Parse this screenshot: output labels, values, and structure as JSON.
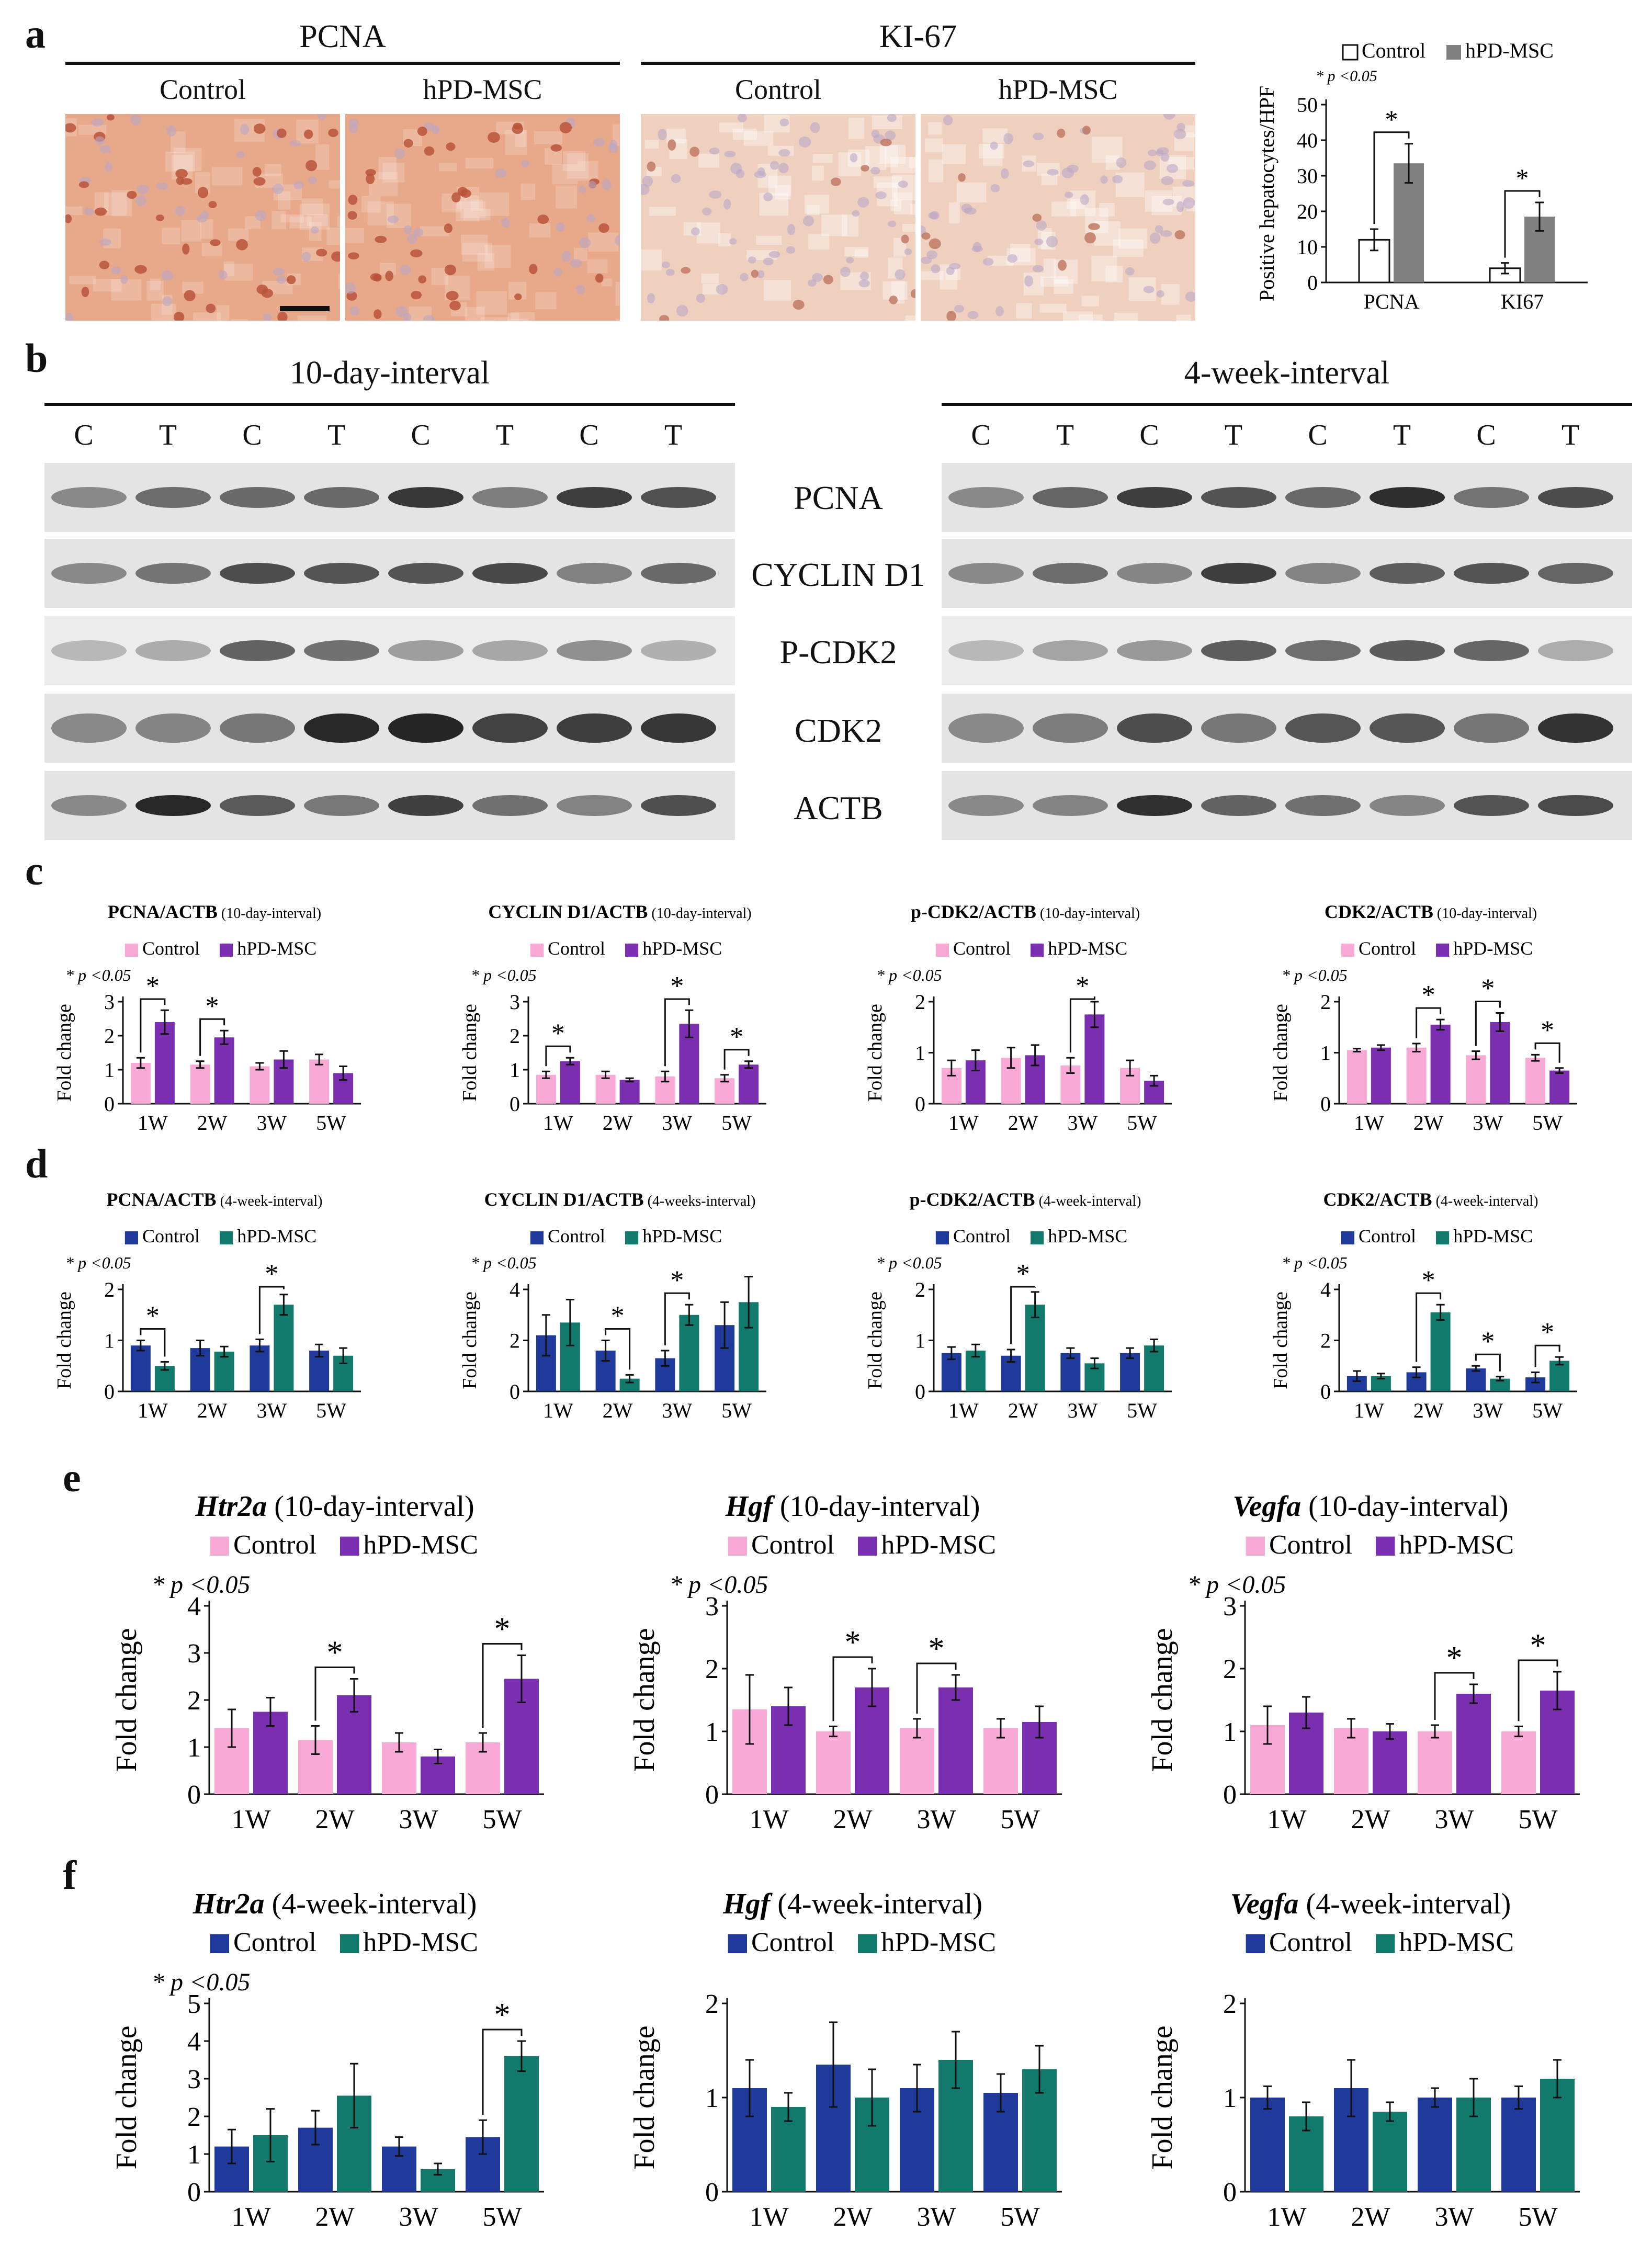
{
  "panels": {
    "a": "a",
    "b": "b",
    "c": "c",
    "d": "d",
    "e": "e",
    "f": "f"
  },
  "a": {
    "pcna_header": "PCNA",
    "ki67_header": "KI-67",
    "sub_control": "Control",
    "sub_treated": "hPD-MSC",
    "tissue_colors": {
      "pcna_base": "#e8a98a",
      "pcna_nucleus": "#b8543a",
      "ki67_base": "#efd0bf",
      "ki67_nucleus": "#c07a64"
    }
  },
  "b": {
    "interval_10d": "10-day-interval",
    "interval_4w": "4-week-interval",
    "lanes": [
      "C",
      "T",
      "C",
      "T",
      "C",
      "T",
      "C",
      "T"
    ],
    "proteins": [
      "PCNA",
      "CYCLIN D1",
      "P-CDK2",
      "CDK2",
      "ACTB"
    ]
  },
  "colors": {
    "control_pink": "#f8a9d6",
    "msc_purple": "#7a2fb0",
    "control_navy": "#1f3a9a",
    "msc_teal": "#127a6c",
    "empty_bar": "#ffffff",
    "grey_bar": "#808080"
  },
  "chart_data": [
    {
      "id": "a-quant",
      "type": "bar",
      "title": "",
      "ylabel": "Positive hepatocytes/HPF",
      "note": "* p <0.05",
      "categories": [
        "PCNA",
        "KI67"
      ],
      "ylim": [
        0,
        50
      ],
      "yticks": [
        0,
        10,
        20,
        30,
        40,
        50
      ],
      "series": [
        {
          "name": "Control",
          "values": [
            12,
            4
          ],
          "err": [
            3,
            1.5
          ]
        },
        {
          "name": "hPD-MSC",
          "values": [
            33.5,
            18.5
          ],
          "err": [
            5.5,
            4
          ]
        }
      ],
      "sig": [
        0,
        1
      ]
    },
    {
      "id": "c1",
      "type": "bar",
      "title": "PCNA/ACTB",
      "interval": "(10-day-interval)",
      "note": "* p <0.05",
      "ylabel": "Fold change",
      "categories": [
        "1W",
        "2W",
        "3W",
        "5W"
      ],
      "ylim": [
        0,
        3
      ],
      "yticks": [
        0,
        1,
        2,
        3
      ],
      "series": [
        {
          "name": "Control",
          "values": [
            1.2,
            1.15,
            1.1,
            1.3
          ],
          "err": [
            0.15,
            0.1,
            0.1,
            0.15
          ]
        },
        {
          "name": "hPD-MSC",
          "values": [
            2.4,
            1.95,
            1.3,
            0.9
          ],
          "err": [
            0.35,
            0.2,
            0.25,
            0.2
          ]
        }
      ],
      "sig": [
        0,
        1
      ]
    },
    {
      "id": "c2",
      "type": "bar",
      "title": "CYCLIN D1/ACTB",
      "interval": "(10-day-interval)",
      "note": "* p <0.05",
      "ylabel": "Fold change",
      "categories": [
        "1W",
        "2W",
        "3W",
        "5W"
      ],
      "ylim": [
        0,
        3
      ],
      "yticks": [
        0,
        1,
        2,
        3
      ],
      "series": [
        {
          "name": "Control",
          "values": [
            0.85,
            0.85,
            0.8,
            0.75
          ],
          "err": [
            0.1,
            0.1,
            0.15,
            0.1
          ]
        },
        {
          "name": "hPD-MSC",
          "values": [
            1.25,
            0.7,
            2.35,
            1.15
          ],
          "err": [
            0.1,
            0.05,
            0.4,
            0.1
          ]
        }
      ],
      "sig": [
        0,
        2,
        3
      ]
    },
    {
      "id": "c3",
      "type": "bar",
      "title": "p-CDK2/ACTB",
      "interval": "(10-day-interval)",
      "note": "* p <0.05",
      "ylabel": "Fold change",
      "categories": [
        "1W",
        "2W",
        "3W",
        "5W"
      ],
      "ylim": [
        0,
        2
      ],
      "yticks": [
        0,
        1,
        2
      ],
      "series": [
        {
          "name": "Control",
          "values": [
            0.7,
            0.9,
            0.75,
            0.7
          ],
          "err": [
            0.15,
            0.2,
            0.15,
            0.15
          ]
        },
        {
          "name": "hPD-MSC",
          "values": [
            0.85,
            0.95,
            1.75,
            0.45
          ],
          "err": [
            0.2,
            0.2,
            0.25,
            0.1
          ]
        }
      ],
      "sig": [
        2
      ]
    },
    {
      "id": "c4",
      "type": "bar",
      "title": "CDK2/ACTB",
      "interval": "(10-day-interval)",
      "note": "* p <0.05",
      "ylabel": "Fold change",
      "categories": [
        "1W",
        "2W",
        "3W",
        "5W"
      ],
      "ylim": [
        0,
        2
      ],
      "yticks": [
        0,
        1,
        2
      ],
      "series": [
        {
          "name": "Control",
          "values": [
            1.05,
            1.1,
            0.95,
            0.9
          ],
          "err": [
            0.03,
            0.08,
            0.08,
            0.06
          ]
        },
        {
          "name": "hPD-MSC",
          "values": [
            1.1,
            1.55,
            1.6,
            0.65
          ],
          "err": [
            0.05,
            0.1,
            0.18,
            0.05
          ]
        }
      ],
      "sig": [
        1,
        2,
        3
      ]
    },
    {
      "id": "d1",
      "type": "bar",
      "title": "PCNA/ACTB",
      "interval": "(4-week-interval)",
      "note": "* p <0.05",
      "ylabel": "Fold change",
      "categories": [
        "1W",
        "2W",
        "3W",
        "5W"
      ],
      "ylim": [
        0,
        2
      ],
      "yticks": [
        0,
        1,
        2
      ],
      "series": [
        {
          "name": "Control",
          "values": [
            0.9,
            0.85,
            0.9,
            0.8
          ],
          "err": [
            0.1,
            0.15,
            0.12,
            0.12
          ]
        },
        {
          "name": "hPD-MSC",
          "values": [
            0.5,
            0.78,
            1.7,
            0.7
          ],
          "err": [
            0.08,
            0.1,
            0.2,
            0.15
          ]
        }
      ],
      "sig": [
        0,
        2
      ]
    },
    {
      "id": "d2",
      "type": "bar",
      "title": "CYCLIN D1/ACTB",
      "interval": "(4-weeks-interval)",
      "note": "* p <0.05",
      "ylabel": "Fold change",
      "categories": [
        "1W",
        "2W",
        "3W",
        "5W"
      ],
      "ylim": [
        0,
        4
      ],
      "yticks": [
        0,
        2,
        4
      ],
      "series": [
        {
          "name": "Control",
          "values": [
            2.2,
            1.6,
            1.3,
            2.6
          ],
          "err": [
            0.8,
            0.4,
            0.3,
            0.9
          ]
        },
        {
          "name": "hPD-MSC",
          "values": [
            2.7,
            0.5,
            3.0,
            3.5
          ],
          "err": [
            0.9,
            0.15,
            0.4,
            1.0
          ]
        }
      ],
      "sig": [
        1,
        2
      ]
    },
    {
      "id": "d3",
      "type": "bar",
      "title": "p-CDK2/ACTB",
      "interval": "(4-week-interval)",
      "note": "* p <0.05",
      "ylabel": "Fold change",
      "categories": [
        "1W",
        "2W",
        "3W",
        "5W"
      ],
      "ylim": [
        0,
        2
      ],
      "yticks": [
        0,
        1,
        2
      ],
      "series": [
        {
          "name": "Control",
          "values": [
            0.75,
            0.7,
            0.75,
            0.75
          ],
          "err": [
            0.12,
            0.12,
            0.1,
            0.1
          ]
        },
        {
          "name": "hPD-MSC",
          "values": [
            0.8,
            1.7,
            0.55,
            0.9
          ],
          "err": [
            0.12,
            0.25,
            0.1,
            0.12
          ]
        }
      ],
      "sig": [
        1
      ]
    },
    {
      "id": "d4",
      "type": "bar",
      "title": "CDK2/ACTB",
      "interval": "(4-week-interval)",
      "note": "* p <0.05",
      "ylabel": "Fold change",
      "categories": [
        "1W",
        "2W",
        "3W",
        "5W"
      ],
      "ylim": [
        0,
        4
      ],
      "yticks": [
        0,
        2,
        4
      ],
      "series": [
        {
          "name": "Control",
          "values": [
            0.6,
            0.75,
            0.9,
            0.55
          ],
          "err": [
            0.2,
            0.2,
            0.1,
            0.2
          ]
        },
        {
          "name": "hPD-MSC",
          "values": [
            0.6,
            3.1,
            0.5,
            1.2
          ],
          "err": [
            0.1,
            0.3,
            0.08,
            0.15
          ]
        }
      ],
      "sig": [
        1,
        2,
        3
      ]
    },
    {
      "id": "e1",
      "type": "bar",
      "title": "Htr2a",
      "interval": "(10-day-interval)",
      "note": "* p <0.05",
      "ylabel": "Fold change",
      "categories": [
        "1W",
        "2W",
        "3W",
        "5W"
      ],
      "ylim": [
        0,
        4
      ],
      "yticks": [
        0,
        1,
        2,
        3,
        4
      ],
      "series": [
        {
          "name": "Control",
          "values": [
            1.4,
            1.15,
            1.1,
            1.1
          ],
          "err": [
            0.4,
            0.3,
            0.2,
            0.2
          ]
        },
        {
          "name": "hPD-MSC",
          "values": [
            1.75,
            2.1,
            0.8,
            2.45
          ],
          "err": [
            0.3,
            0.35,
            0.15,
            0.5
          ]
        }
      ],
      "sig": [
        1,
        3
      ]
    },
    {
      "id": "e2",
      "type": "bar",
      "title": "Hgf",
      "interval": "(10-day-interval)",
      "note": "* p <0.05",
      "ylabel": "Fold change",
      "categories": [
        "1W",
        "2W",
        "3W",
        "5W"
      ],
      "ylim": [
        0,
        3
      ],
      "yticks": [
        0,
        1,
        2,
        3
      ],
      "series": [
        {
          "name": "Control",
          "values": [
            1.35,
            1.0,
            1.05,
            1.05
          ],
          "err": [
            0.55,
            0.08,
            0.15,
            0.15
          ]
        },
        {
          "name": "hPD-MSC",
          "values": [
            1.4,
            1.7,
            1.7,
            1.15
          ],
          "err": [
            0.3,
            0.3,
            0.2,
            0.25
          ]
        }
      ],
      "sig": [
        1,
        2
      ]
    },
    {
      "id": "e3",
      "type": "bar",
      "title": "Vegfa",
      "interval": "(10-day-interval)",
      "note": "* p <0.05",
      "ylabel": "Fold change",
      "categories": [
        "1W",
        "2W",
        "3W",
        "5W"
      ],
      "ylim": [
        0,
        3
      ],
      "yticks": [
        0,
        1,
        2,
        3
      ],
      "series": [
        {
          "name": "Control",
          "values": [
            1.1,
            1.05,
            1.0,
            1.0
          ],
          "err": [
            0.3,
            0.15,
            0.1,
            0.08
          ]
        },
        {
          "name": "hPD-MSC",
          "values": [
            1.3,
            1.0,
            1.6,
            1.65
          ],
          "err": [
            0.25,
            0.12,
            0.15,
            0.3
          ]
        }
      ],
      "sig": [
        2,
        3
      ]
    },
    {
      "id": "f1",
      "type": "bar",
      "title": "Htr2a",
      "interval": "(4-week-interval)",
      "note": "* p <0.05",
      "ylabel": "Fold change",
      "categories": [
        "1W",
        "2W",
        "3W",
        "5W"
      ],
      "ylim": [
        0,
        5
      ],
      "yticks": [
        0,
        1,
        2,
        3,
        4,
        5
      ],
      "series": [
        {
          "name": "Control",
          "values": [
            1.2,
            1.7,
            1.2,
            1.45
          ],
          "err": [
            0.45,
            0.45,
            0.25,
            0.45
          ]
        },
        {
          "name": "hPD-MSC",
          "values": [
            1.5,
            2.55,
            0.6,
            3.6
          ],
          "err": [
            0.7,
            0.85,
            0.15,
            0.4
          ]
        }
      ],
      "sig": [
        3
      ]
    },
    {
      "id": "f2",
      "type": "bar",
      "title": "Hgf",
      "interval": "(4-week-interval)",
      "note": "",
      "ylabel": "Fold change",
      "categories": [
        "1W",
        "2W",
        "3W",
        "5W"
      ],
      "ylim": [
        0,
        2
      ],
      "yticks": [
        0,
        1,
        2
      ],
      "series": [
        {
          "name": "Control",
          "values": [
            1.1,
            1.35,
            1.1,
            1.05
          ],
          "err": [
            0.3,
            0.45,
            0.25,
            0.2
          ]
        },
        {
          "name": "hPD-MSC",
          "values": [
            0.9,
            1.0,
            1.4,
            1.3
          ],
          "err": [
            0.15,
            0.3,
            0.3,
            0.25
          ]
        }
      ],
      "sig": []
    },
    {
      "id": "f3",
      "type": "bar",
      "title": "Vegfa",
      "interval": "(4-week-interval)",
      "note": "",
      "ylabel": "Fold change",
      "categories": [
        "1W",
        "2W",
        "3W",
        "5W"
      ],
      "ylim": [
        0,
        2
      ],
      "yticks": [
        0,
        1,
        2
      ],
      "series": [
        {
          "name": "Control",
          "values": [
            1.0,
            1.1,
            1.0,
            1.0
          ],
          "err": [
            0.12,
            0.3,
            0.1,
            0.12
          ]
        },
        {
          "name": "hPD-MSC",
          "values": [
            0.8,
            0.85,
            1.0,
            1.2
          ],
          "err": [
            0.15,
            0.1,
            0.2,
            0.2
          ]
        }
      ],
      "sig": []
    }
  ]
}
